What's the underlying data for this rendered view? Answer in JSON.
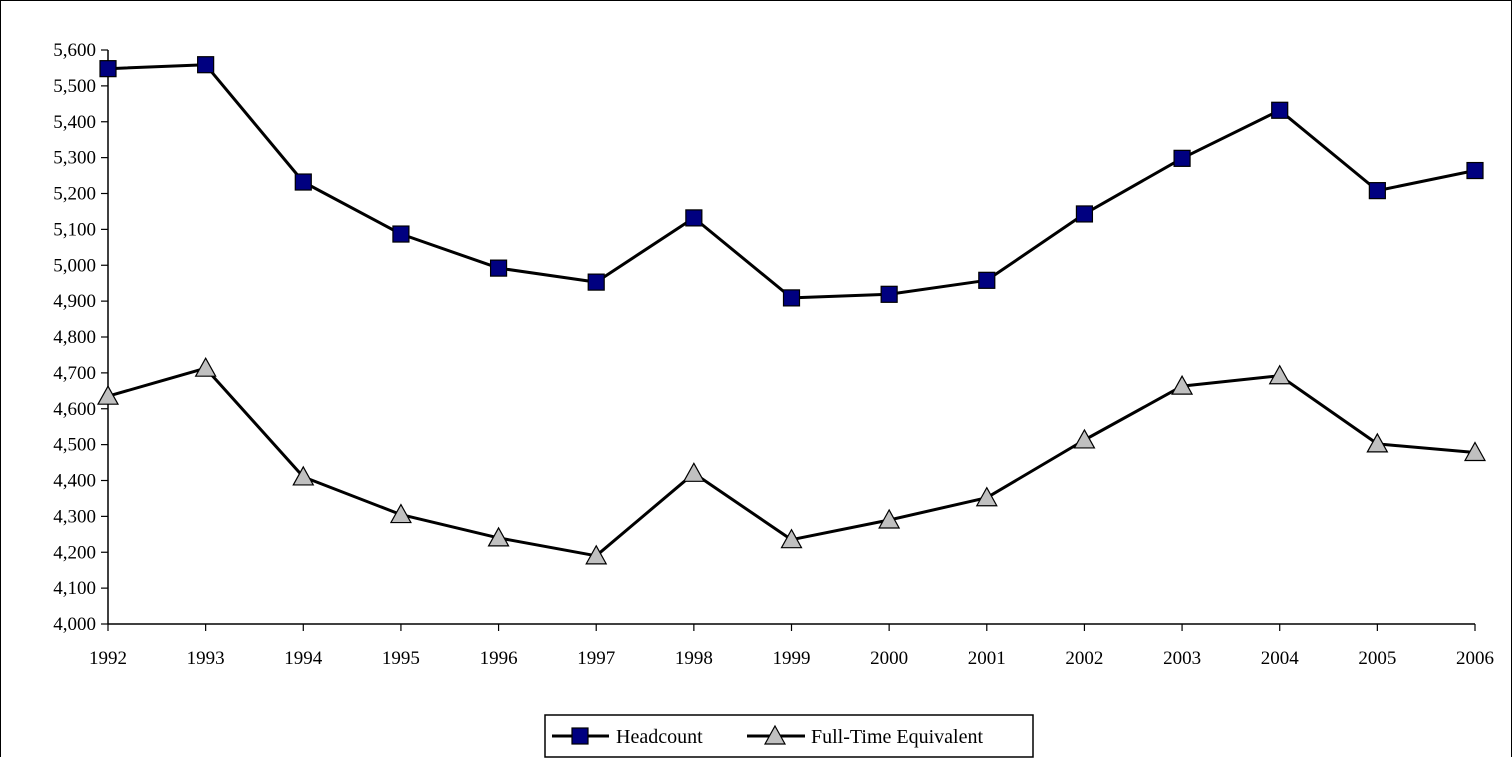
{
  "chart_data": {
    "type": "line",
    "title": "",
    "xlabel": "",
    "ylabel": "",
    "categories": [
      "1992",
      "1993",
      "1994",
      "1995",
      "1996",
      "1997",
      "1998",
      "1999",
      "2000",
      "2001",
      "2002",
      "2003",
      "2004",
      "2005",
      "2006"
    ],
    "ylim": [
      4000,
      5600
    ],
    "yticks": [
      4000,
      4100,
      4200,
      4300,
      4400,
      4500,
      4600,
      4700,
      4800,
      4900,
      5000,
      5100,
      5200,
      5300,
      5400,
      5500,
      5600
    ],
    "ytick_labels": [
      "4,000",
      "4,100",
      "4,200",
      "4,300",
      "4,400",
      "4,500",
      "4,600",
      "4,700",
      "4,800",
      "4,900",
      "5,000",
      "5,100",
      "5,200",
      "5,300",
      "5,400",
      "5,500",
      "5,600"
    ],
    "grid": false,
    "legend_position": "bottom",
    "series": [
      {
        "name": "Headcount",
        "marker": "square",
        "marker_color": "#000080",
        "line_color": "#000000",
        "values": [
          5548,
          5559,
          5232,
          5087,
          4992,
          4953,
          5132,
          4909,
          4919,
          4958,
          5143,
          5298,
          5432,
          5208,
          5264
        ]
      },
      {
        "name": "Full-Time Equivalent",
        "marker": "triangle",
        "marker_color": "#c0c0c0",
        "line_color": "#000000",
        "values": [
          4635,
          4713,
          4410,
          4305,
          4240,
          4190,
          4420,
          4235,
          4290,
          4352,
          4513,
          4663,
          4692,
          4502,
          4478
        ]
      }
    ]
  }
}
